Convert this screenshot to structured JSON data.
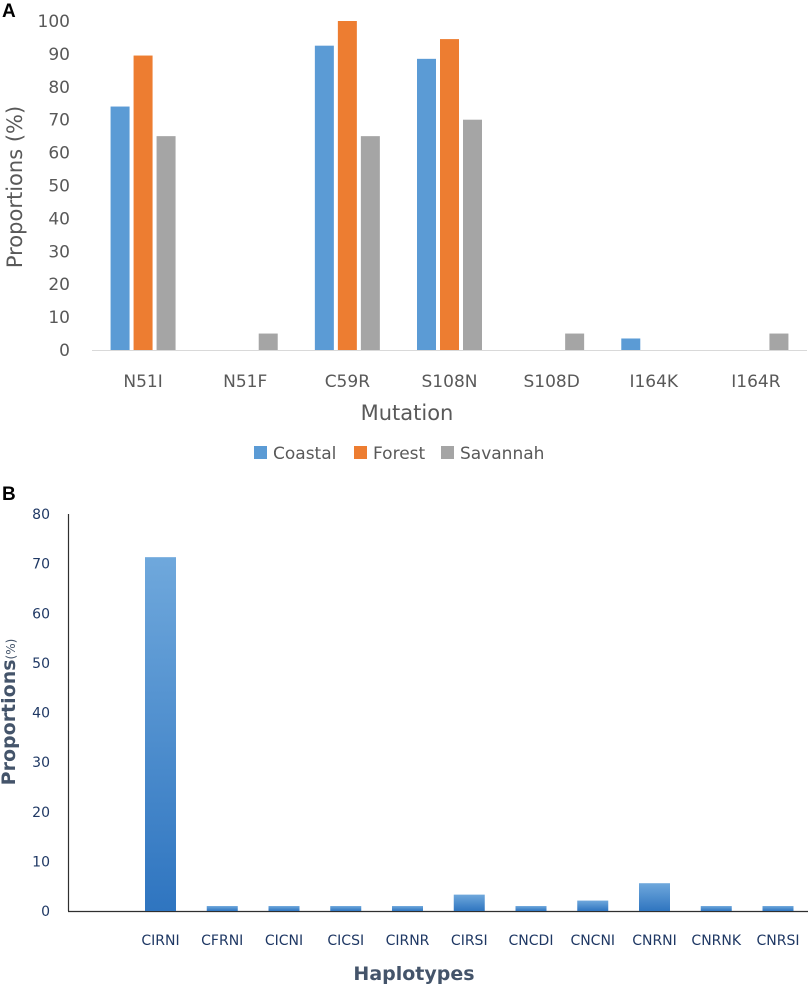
{
  "chart_data": [
    {
      "panel": "A",
      "type": "bar",
      "title": "",
      "xlabel": "Mutation",
      "ylabel": "Proportions (%)",
      "ylim": [
        0,
        100
      ],
      "yticks": [
        0,
        10,
        20,
        30,
        40,
        50,
        60,
        70,
        80,
        90,
        100
      ],
      "categories": [
        "N51I",
        "N51F",
        "C59R",
        "S108N",
        "S108D",
        "I164K",
        "I164R"
      ],
      "series": [
        {
          "name": "Coastal",
          "color": "#5b9bd5",
          "values": [
            74,
            0,
            92.5,
            88.5,
            0,
            3.5,
            0
          ]
        },
        {
          "name": "Forest",
          "color": "#ed7d31",
          "values": [
            89.5,
            0,
            100,
            94.5,
            0,
            0,
            0
          ]
        },
        {
          "name": "Savannah",
          "color": "#a5a5a5",
          "values": [
            65,
            5,
            65,
            70,
            5,
            0,
            5
          ]
        }
      ],
      "legend": "bottom"
    },
    {
      "panel": "B",
      "type": "bar",
      "title": "",
      "xlabel": "Haplotypes",
      "ylabel": "Proportions",
      "ylabel_suffix": "(%)",
      "ylim": [
        0,
        80
      ],
      "yticks": [
        0,
        10,
        20,
        30,
        40,
        50,
        60,
        70,
        80
      ],
      "categories": [
        "CIRNI",
        "CFRNI",
        "CICNI",
        "CICSI",
        "CIRNR",
        "CIRSI",
        "CNCDI",
        "CNCNI",
        "CNRNI",
        "CNRNK",
        "CNRSI"
      ],
      "values": [
        71.3,
        1,
        1,
        1,
        1,
        3.3,
        1,
        2.1,
        5.6,
        1,
        1
      ],
      "color": "#5b9bd5"
    }
  ]
}
